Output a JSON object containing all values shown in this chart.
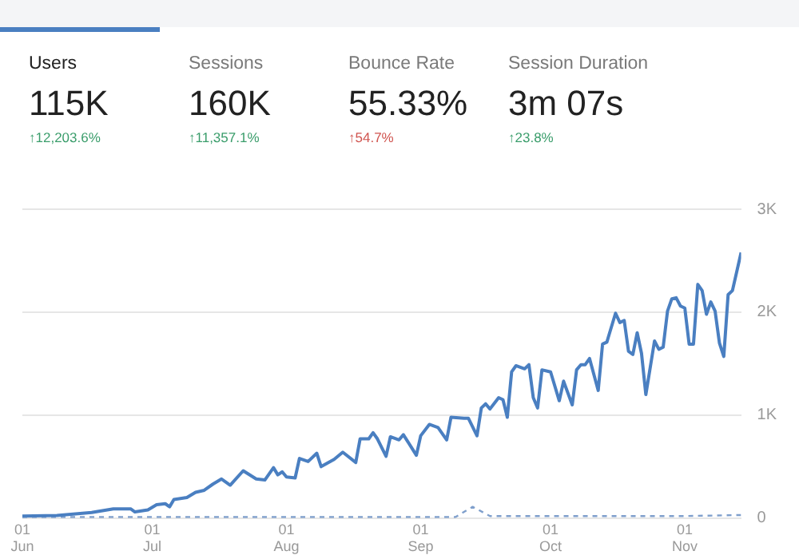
{
  "chart_data": [
    {
      "type": "other",
      "categories": [
        "Users",
        "Sessions",
        "Bounce Rate",
        "Session Duration"
      ],
      "value_labels": [
        "115K",
        "160K",
        "55.33%",
        "3m 07s"
      ],
      "annotations": [
        "↑12,203.6%",
        "↑11,357.1%",
        "↑54.7%",
        "↑23.8%"
      ],
      "colors": [
        "#3a9d6b",
        "#3a9d6b",
        "#d0544f",
        "#3a9d6b"
      ]
    },
    {
      "type": "line",
      "x": [
        "--06-01",
        "--06-09",
        "--06-17",
        "--06-22",
        "--06-26",
        "--06-27",
        "--06-30",
        "--07-02",
        "--07-04",
        "--07-05",
        "--07-06",
        "--07-09",
        "--07-11",
        "--07-13",
        "--07-15",
        "--07-17",
        "--07-19",
        "--07-22",
        "--07-25",
        "--07-27",
        "--07-29",
        "--07-30",
        "--07-31",
        "--08-01",
        "--08-03",
        "--08-04",
        "--08-06",
        "--08-08",
        "--08-09",
        "--08-12",
        "--08-14",
        "--08-17",
        "--08-18",
        "--08-20",
        "--08-21",
        "--08-22",
        "--08-24",
        "--08-25",
        "--08-27",
        "--08-28",
        "--08-31",
        "--09-01",
        "--09-03",
        "--09-05",
        "--09-07",
        "--09-08",
        "--09-11",
        "--09-12",
        "--09-14",
        "--09-15",
        "--09-16",
        "--09-17",
        "--09-19",
        "--09-20",
        "--09-21",
        "--09-22",
        "--09-23",
        "--09-25",
        "--09-26",
        "--09-27",
        "--09-28",
        "--09-29",
        "--10-01",
        "--10-03",
        "--10-04",
        "--10-06",
        "--10-07",
        "--10-08",
        "--10-09",
        "--10-10",
        "--10-12",
        "--10-13",
        "--10-14",
        "--10-16",
        "--10-17",
        "--10-18",
        "--10-19",
        "--10-20",
        "--10-21",
        "--10-22",
        "--10-23",
        "--10-25",
        "--10-26",
        "--10-27",
        "--10-28",
        "--10-29",
        "--10-30",
        "--10-31",
        "--11-01",
        "--11-02",
        "--11-03",
        "--11-04",
        "--11-05",
        "--11-06",
        "--11-07",
        "--11-08",
        "--11-09",
        "--11-10",
        "--11-11",
        "--11-12",
        "--11-14"
      ],
      "series": [
        {
          "color": "#4a7fc1",
          "values": [
            20,
            25,
            55,
            90,
            90,
            60,
            80,
            130,
            140,
            110,
            180,
            200,
            250,
            270,
            330,
            380,
            320,
            460,
            380,
            370,
            490,
            420,
            450,
            400,
            390,
            580,
            550,
            630,
            500,
            570,
            640,
            540,
            770,
            770,
            830,
            770,
            600,
            790,
            760,
            810,
            610,
            800,
            910,
            880,
            760,
            980,
            970,
            970,
            800,
            1070,
            1110,
            1060,
            1170,
            1150,
            980,
            1420,
            1480,
            1450,
            1490,
            1170,
            1070,
            1440,
            1420,
            1140,
            1330,
            1100,
            1440,
            1490,
            1490,
            1550,
            1240,
            1690,
            1710,
            1990,
            1900,
            1920,
            1620,
            1590,
            1800,
            1600,
            1200,
            1720,
            1640,
            1660,
            2010,
            2130,
            2140,
            2060,
            2040,
            1690,
            1690,
            2270,
            2210,
            1980,
            2100,
            2010,
            1700,
            1570,
            2170,
            2210,
            2580
          ]
        },
        {
          "color": "#7f9fcc",
          "line_style": "dashed",
          "x": [
            "--06-01",
            "--09-09",
            "--09-13",
            "--09-17",
            "--11-01",
            "--11-14"
          ],
          "values": [
            10,
            10,
            110,
            20,
            20,
            30
          ]
        }
      ],
      "xlim": [
        "--06-01",
        "--11-14"
      ],
      "xticks": [
        {
          "value": "--06-01",
          "label": "01\nJun"
        },
        {
          "value": "--07-01",
          "label": "01\nJul"
        },
        {
          "value": "--08-01",
          "label": "01\nAug"
        },
        {
          "value": "--09-01",
          "label": "01\nSep"
        },
        {
          "value": "--10-01",
          "label": "01\nOct"
        },
        {
          "value": "--11-01",
          "label": "01\nNov"
        }
      ],
      "ylim": [
        0,
        3000
      ],
      "yticks": [
        0,
        {
          "value": 1000,
          "label": "1K"
        },
        {
          "value": 2000,
          "label": "2K"
        },
        {
          "value": 3000,
          "label": "3K"
        }
      ],
      "grid": "y",
      "marker": "none",
      "line_style": "solid",
      "legend": false
    }
  ]
}
